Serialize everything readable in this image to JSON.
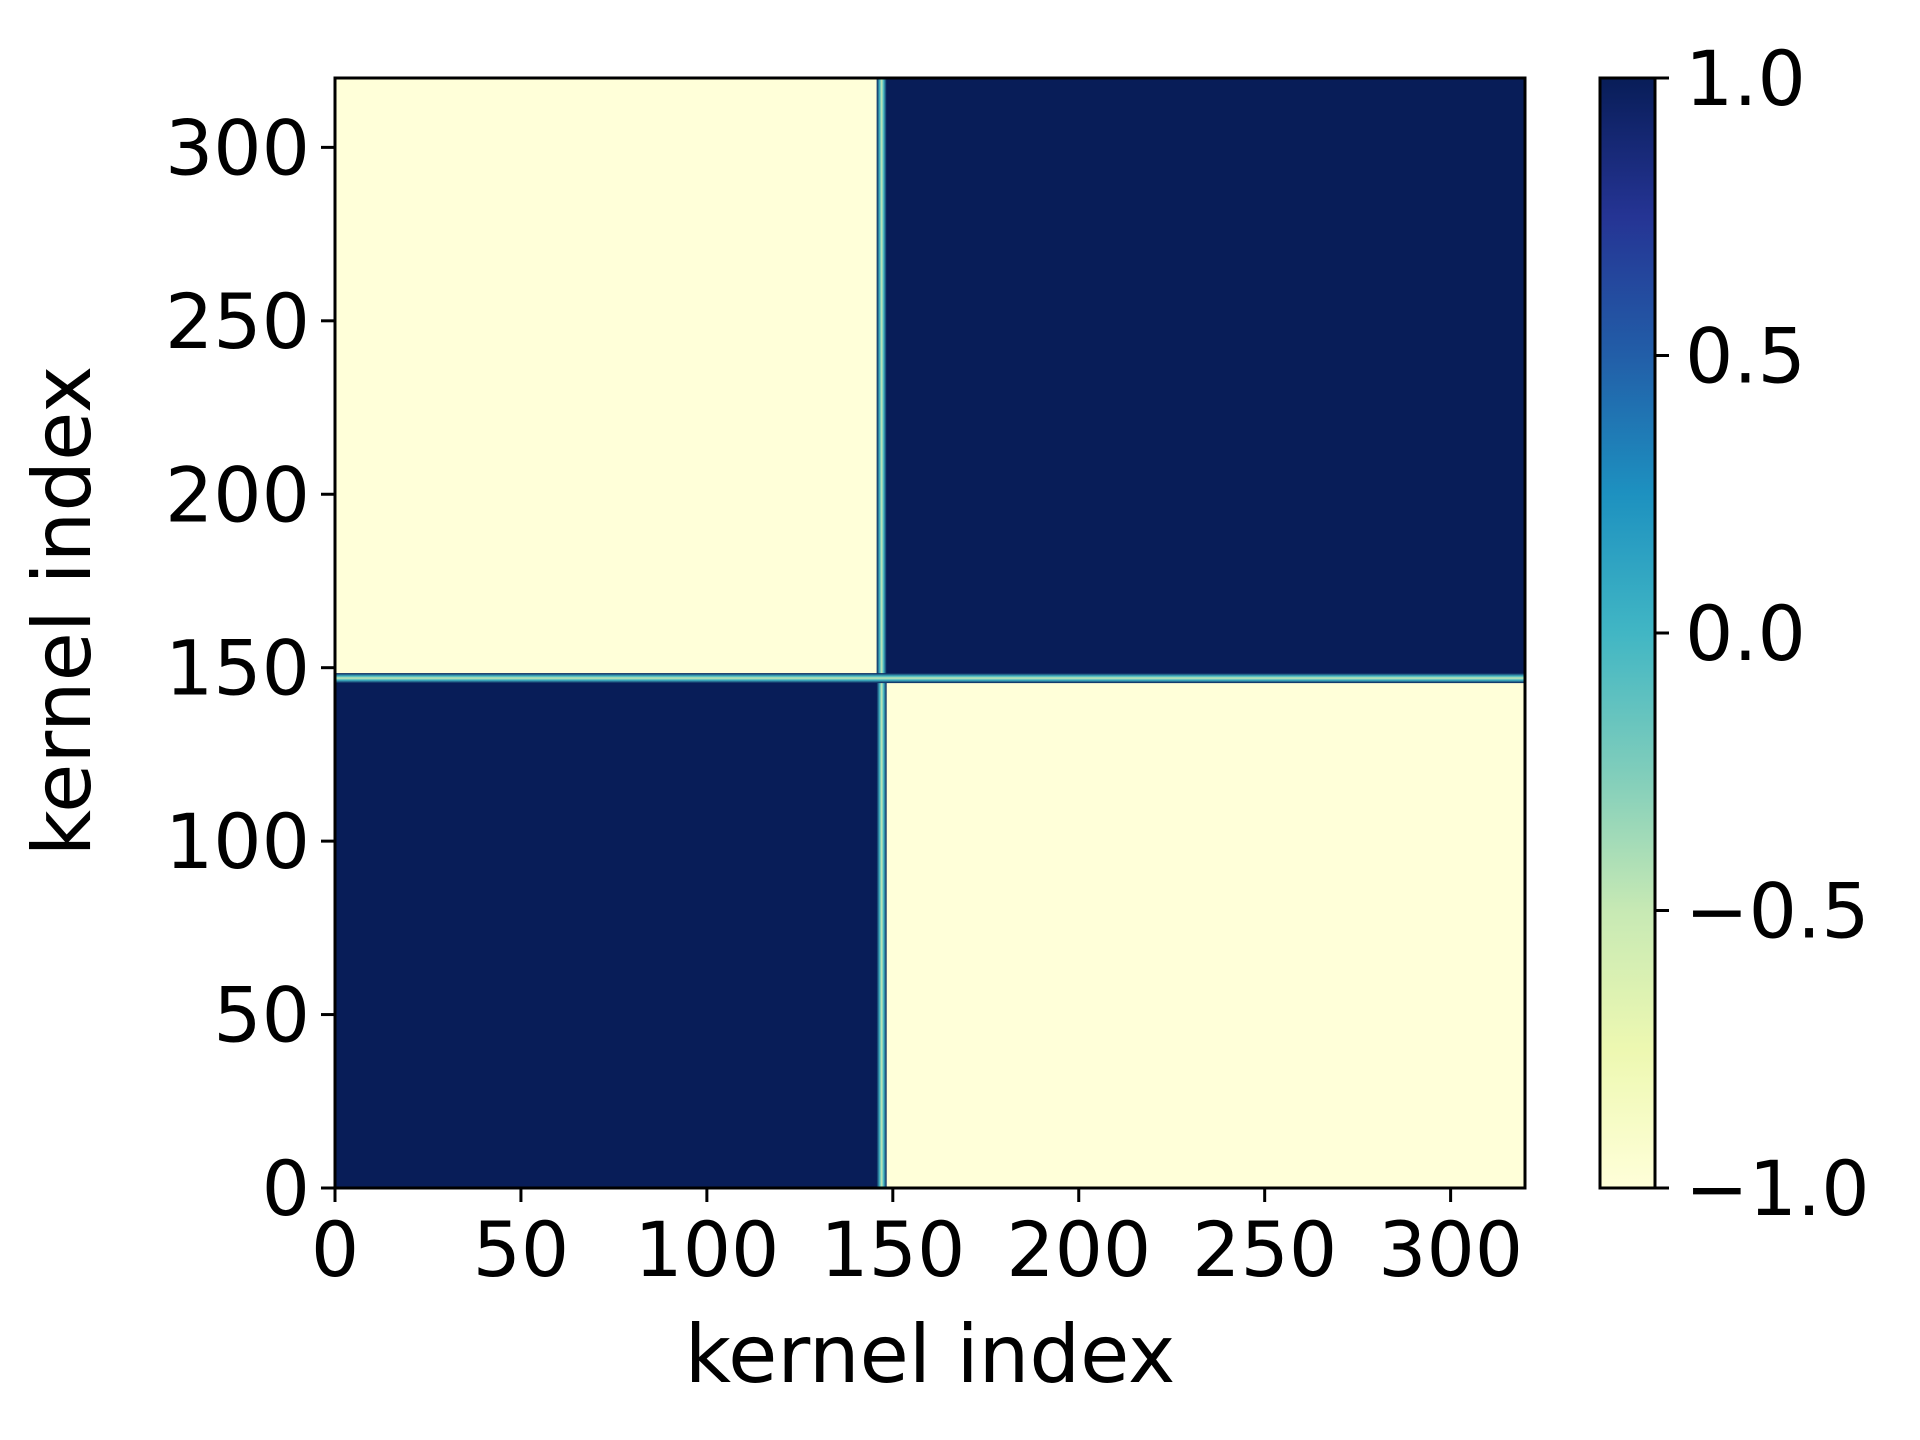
{
  "chart_data": {
    "type": "heatmap",
    "title": "",
    "xlabel": "kernel index",
    "ylabel": "kernel index",
    "xlim": [
      0,
      320
    ],
    "ylim": [
      0,
      320
    ],
    "x_ticks": [
      0,
      50,
      100,
      150,
      200,
      250,
      300
    ],
    "y_ticks": [
      0,
      50,
      100,
      150,
      200,
      250,
      300
    ],
    "x_tick_labels": [
      "0",
      "50",
      "100",
      "150",
      "200",
      "250",
      "300"
    ],
    "y_tick_labels": [
      "0",
      "50",
      "100",
      "150",
      "200",
      "250",
      "300"
    ],
    "colormap": "YlGnBu",
    "color_stops": [
      "#ffffd9",
      "#edf8b1",
      "#c7e9b4",
      "#7fcdbb",
      "#41b6c4",
      "#1d91c0",
      "#225ea8",
      "#253494",
      "#081d58"
    ],
    "colorbar": {
      "range": [
        -1.0,
        1.0
      ],
      "ticks": [
        1.0,
        0.5,
        0.0,
        -0.5,
        -1.0
      ],
      "tick_labels": [
        "1.0",
        "0.5",
        "0.0",
        "−0.5",
        "−1.0"
      ]
    },
    "blocks": [
      {
        "x_range": [
          0,
          147
        ],
        "y_range": [
          0,
          147
        ],
        "value": 1.0
      },
      {
        "x_range": [
          147,
          320
        ],
        "y_range": [
          147,
          320
        ],
        "value": 1.0
      },
      {
        "x_range": [
          0,
          147
        ],
        "y_range": [
          147,
          320
        ],
        "value": -1.0
      },
      {
        "x_range": [
          147,
          320
        ],
        "y_range": [
          0,
          147
        ],
        "value": -1.0
      }
    ],
    "boundary_index": 147
  }
}
